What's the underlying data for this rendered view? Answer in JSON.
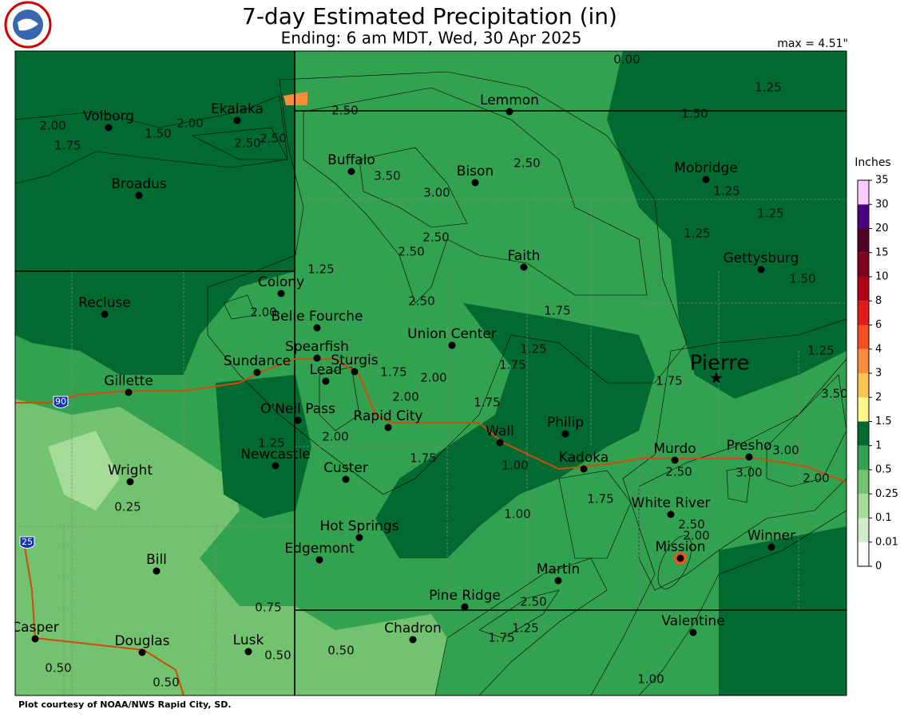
{
  "header": {
    "title": "7-day Estimated Precipitation (in)",
    "subtitle": "Ending: 6 am MDT, Wed, 30 Apr 2025",
    "max_label": "max = 4.51\""
  },
  "cities": [
    "Volborg",
    "Ekalaka",
    "Lemmon",
    "Buffalo",
    "Bison",
    "Broadus",
    "Mobridge",
    "Gettysburg",
    "Faith",
    "Colony",
    "Recluse",
    "Belle Fourche",
    "Union Center",
    "Spearfish",
    "Sturgis",
    "Lead",
    "Sundance",
    "Pierre",
    "Gillette",
    "O'Neil Pass",
    "Rapid City",
    "Wall",
    "Philip",
    "Murdo",
    "Presho",
    "Kadoka",
    "Newcastle",
    "Custer",
    "Wright",
    "White River",
    "Hot Springs",
    "Winner",
    "Mission",
    "Edgemont",
    "Bill",
    "Martin",
    "Pine Ridge",
    "Valentine",
    "Casper",
    "Chadron",
    "Douglas",
    "Lusk"
  ],
  "contour_labels": [
    "2.00",
    "1.75",
    "1.50",
    "2.00",
    "2.50",
    "2.50",
    "2.50",
    "3.50",
    "3.00",
    "2.50",
    "2.50",
    "2.50",
    "1.25",
    "2.00",
    "2.50",
    "1.75",
    "1.75",
    "2.00",
    "1.25",
    "1.75",
    "2.00",
    "1.75",
    "2.00",
    "1.75",
    "1.00",
    "1.25",
    "0.25",
    "1.00",
    "1.75",
    "2.50",
    "3.00",
    "3.00",
    "3.50",
    "2.00",
    "1.75",
    "1.25",
    "1.25",
    "1.25",
    "1.25",
    "1.50",
    "1.50",
    "1.25",
    "0.00",
    "2.50",
    "2.00",
    "2.50",
    "1.75",
    "1.25",
    "0.75",
    "0.50",
    "0.50",
    "0.50",
    "0.50",
    "1.00"
  ],
  "highway_shields": [
    "90",
    "25"
  ],
  "legend": {
    "title": "Inches",
    "ticks": [
      0,
      0.01,
      0.1,
      0.25,
      0.5,
      1,
      1.5,
      2,
      3,
      4,
      6,
      8,
      10,
      15,
      20,
      30,
      35
    ],
    "colors": [
      "#ffffff",
      "#d3edcc",
      "#a6dc9a",
      "#72c26f",
      "#32a150",
      "#006a30",
      "#fff68a",
      "#fdc44f",
      "#f98b3c",
      "#f64f25",
      "#e01a1a",
      "#b30018",
      "#80001f",
      "#520026",
      "#4b0082",
      "#ffccff"
    ]
  },
  "footer": "Plot courtesy of NOAA/NWS Rapid City, SD."
}
